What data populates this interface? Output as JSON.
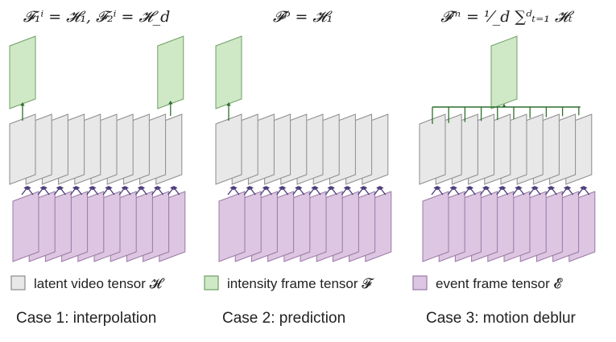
{
  "colors": {
    "latent_fill": "#e8e8e8",
    "latent_stroke": "#8c8c8c",
    "intensity_fill": "#cfe8c6",
    "intensity_stroke": "#6f9f66",
    "event_fill": "#dcc6e2",
    "event_stroke": "#9a79a6",
    "arrow": "#4a3a7a",
    "connector": "#2f6e2f"
  },
  "cases": [
    {
      "id": "interpolation",
      "formula": "𝓕₁ⁱ = 𝓗₁, 𝓕₂ⁱ = 𝓗_d",
      "caption": "Case 1: interpolation",
      "latent_frames": 10,
      "event_frames": 10,
      "mode": "endpoints"
    },
    {
      "id": "prediction",
      "formula": "𝓕ᵖ = 𝓗₁",
      "caption": "Case 2: prediction",
      "latent_frames": 10,
      "event_frames": 10,
      "mode": "first"
    },
    {
      "id": "motion-deblur",
      "formula": "𝓕ᵐ = ¹⁄_d ∑ᵈₜ₌₁ 𝓗ₜ",
      "caption": "Case 3: motion deblur",
      "latent_frames": 10,
      "event_frames": 10,
      "mode": "average"
    }
  ],
  "legend": [
    {
      "key": "latent",
      "label": "latent video tensor 𝓗"
    },
    {
      "key": "intensity",
      "label": "intensity frame tensor 𝓕"
    },
    {
      "key": "event",
      "label": "event frame tensor 𝓔"
    }
  ]
}
